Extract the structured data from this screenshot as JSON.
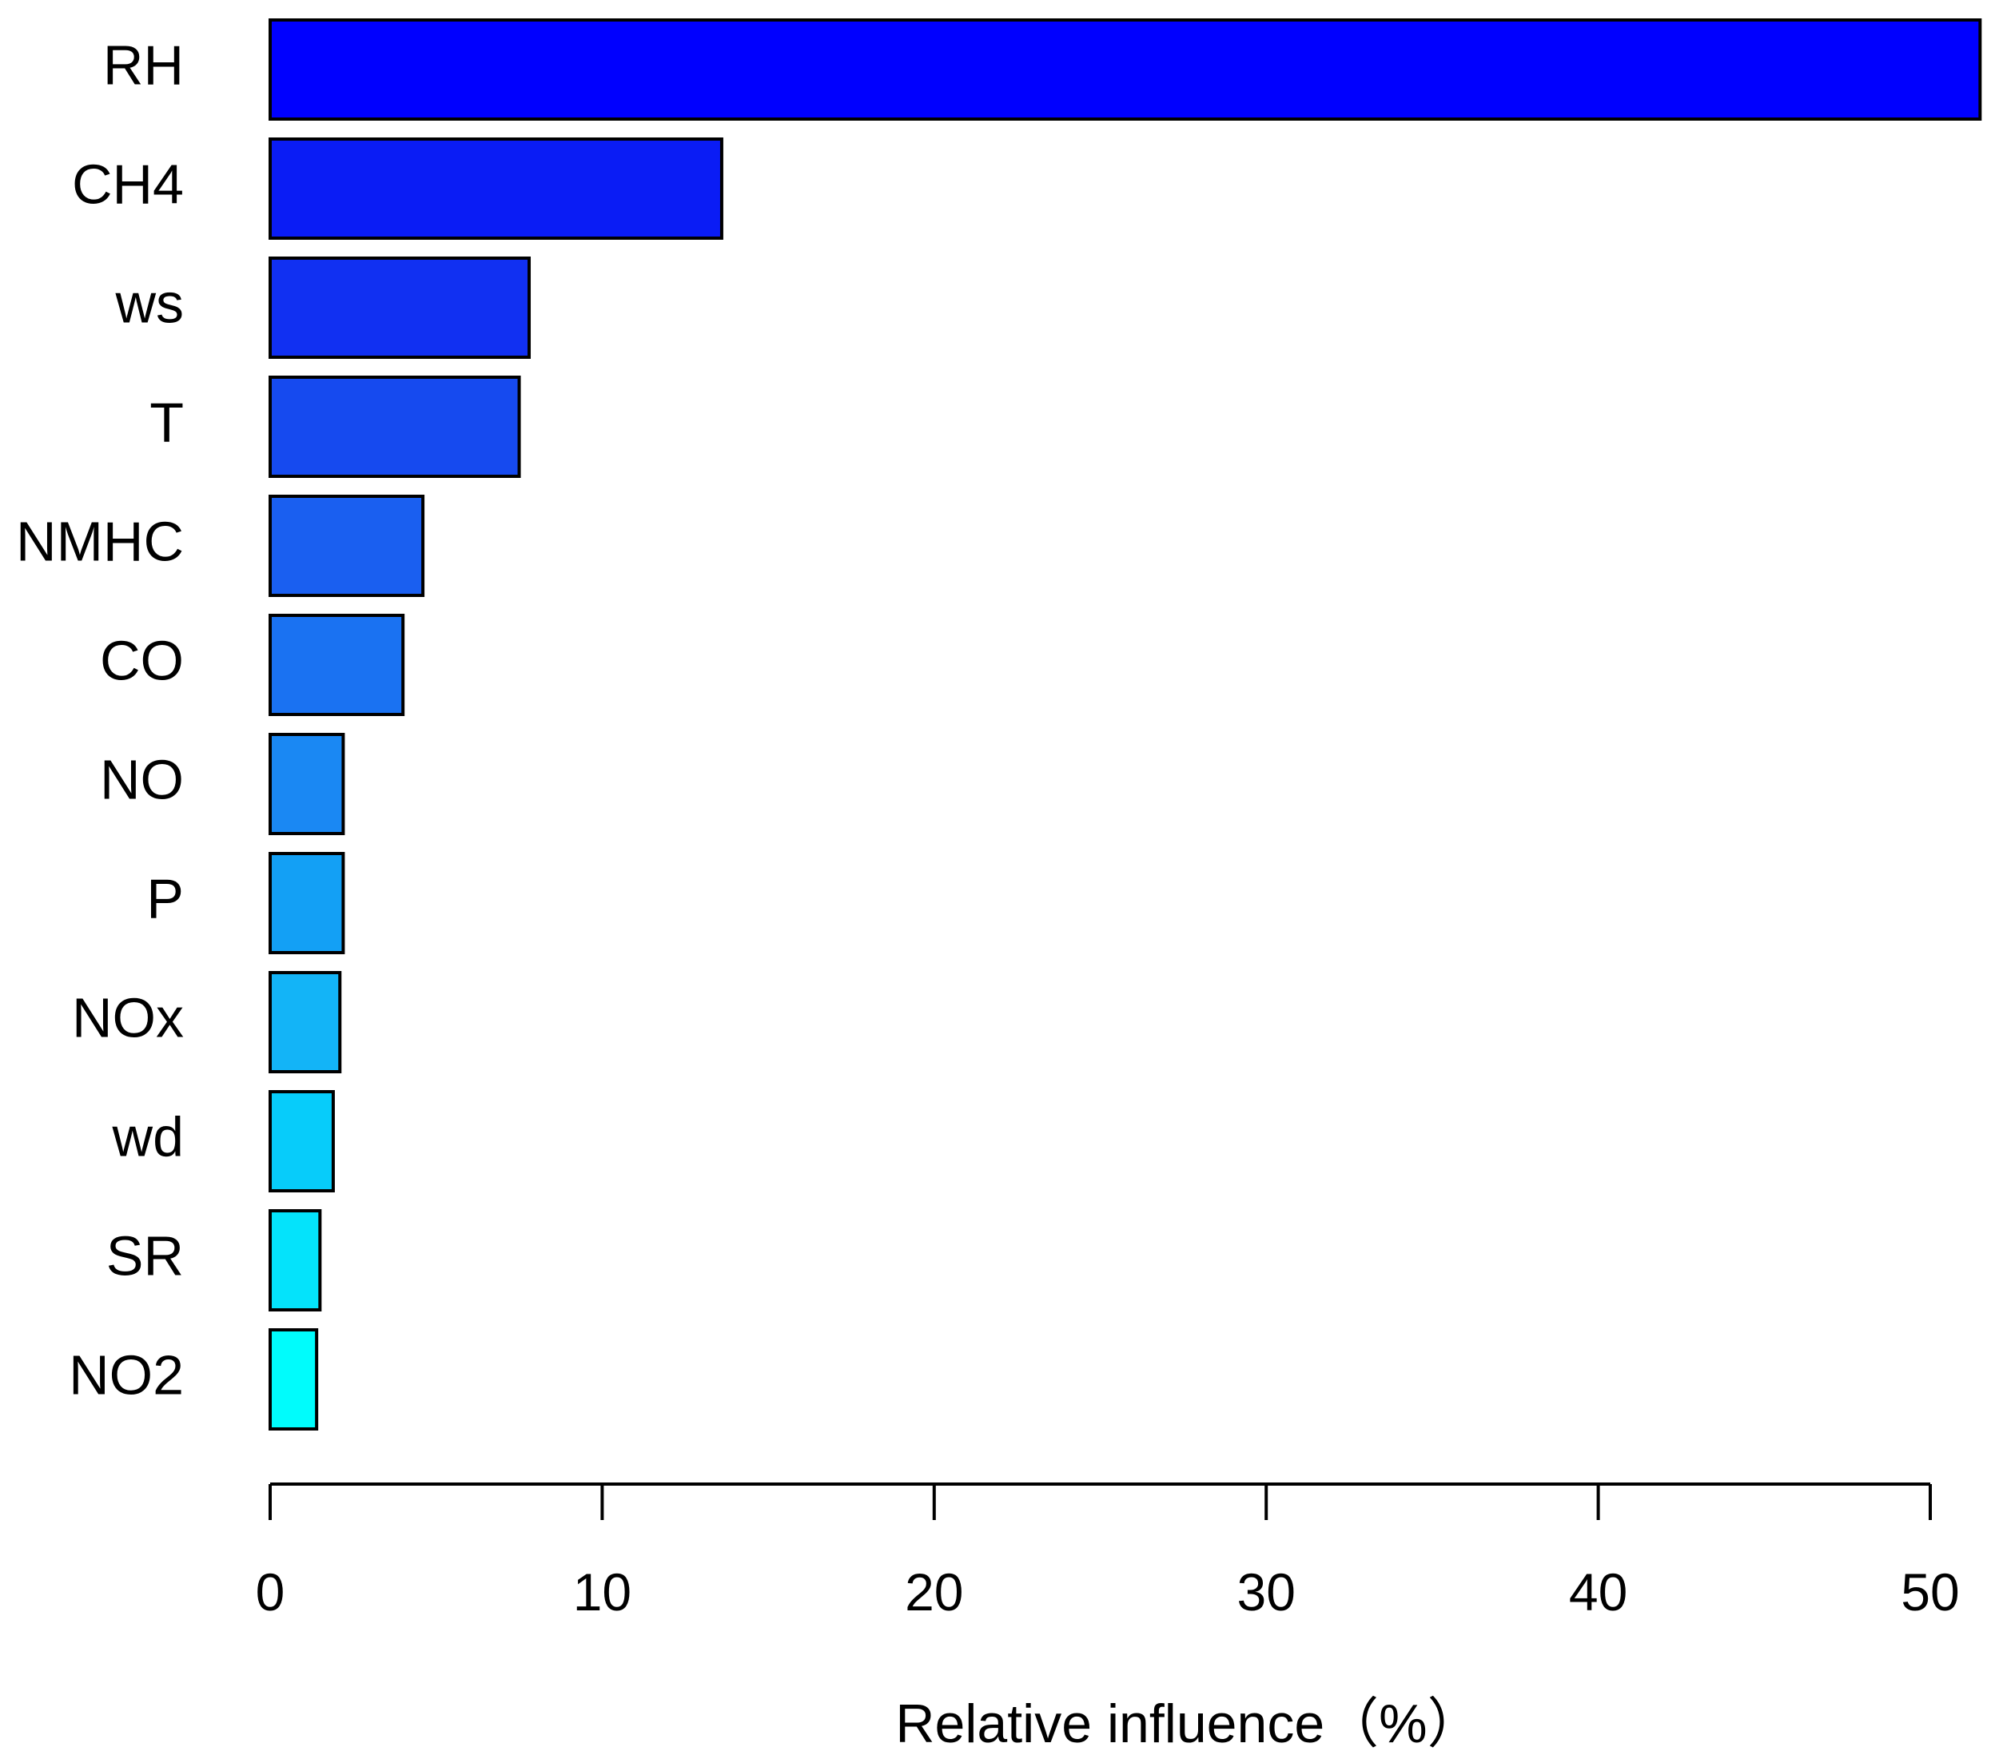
{
  "chart_data": {
    "type": "bar",
    "orientation": "horizontal",
    "categories": [
      "RH",
      "CH4",
      "ws",
      "T",
      "NMHC",
      "CO",
      "NO",
      "P",
      "NOx",
      "wd",
      "SR",
      "NO2"
    ],
    "values": [
      51.5,
      13.6,
      7.8,
      7.5,
      4.6,
      4.0,
      2.2,
      2.2,
      2.1,
      1.9,
      1.5,
      1.4
    ],
    "colors": [
      "#0000ff",
      "#0a1cf5",
      "#1130f2",
      "#164aef",
      "#1a5ff0",
      "#1a72f2",
      "#1a88f3",
      "#13a0f5",
      "#13b4f7",
      "#07ccfa",
      "#04e3fb",
      "#00fcfc"
    ],
    "xlabel": "Relative influence（%）",
    "ylabel": "",
    "xlim": [
      0,
      50
    ],
    "xticks": [
      0,
      10,
      20,
      30,
      40,
      50
    ],
    "grid": false,
    "legend": false
  }
}
